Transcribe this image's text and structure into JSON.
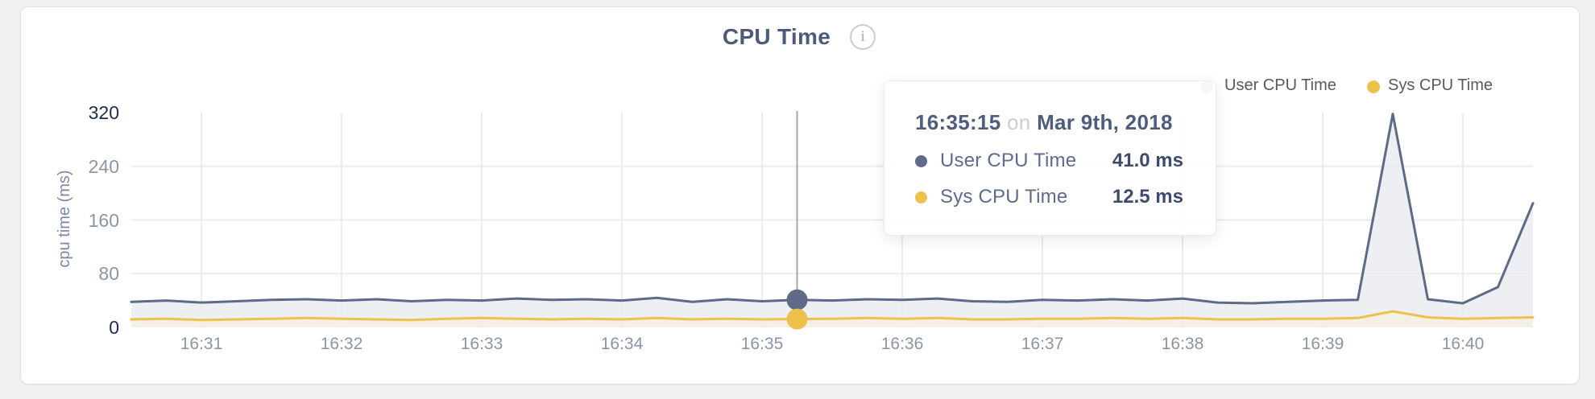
{
  "page": {
    "background": "#f1f1f2",
    "card_background": "#ffffff",
    "card_border": "#e2e2e2"
  },
  "header": {
    "title": "CPU Time",
    "info_icon": "i"
  },
  "tooltip": {
    "time": "16:35:15",
    "conjunction": "on",
    "date": "Mar 9th, 2018",
    "rows": [
      {
        "label": "User CPU Time",
        "value": "41.0 ms"
      },
      {
        "label": "Sys CPU Time",
        "value": "12.5 ms"
      }
    ]
  },
  "chart_data": {
    "type": "area",
    "title": "CPU Time",
    "xlabel": "",
    "ylabel": "cpu time (ms)",
    "unit": "ms",
    "ylim": [
      0,
      320
    ],
    "y_ticks": [
      0,
      80,
      160,
      240,
      320
    ],
    "y_ticks_emphasized": [
      0,
      320
    ],
    "x_ticks": [
      "16:31",
      "16:32",
      "16:33",
      "16:34",
      "16:35",
      "16:36",
      "16:37",
      "16:38",
      "16:39",
      "16:40"
    ],
    "x_start": "16:30:30",
    "x_end": "16:40:30",
    "interval_seconds": 15,
    "grid": {
      "h_lines_at": [
        80,
        160,
        240
      ],
      "v_lines_at_ticks": true,
      "color": "#ececec"
    },
    "legend_position": "top-right",
    "times": [
      "16:30:30",
      "16:30:45",
      "16:31:00",
      "16:31:15",
      "16:31:30",
      "16:31:45",
      "16:32:00",
      "16:32:15",
      "16:32:30",
      "16:32:45",
      "16:33:00",
      "16:33:15",
      "16:33:30",
      "16:33:45",
      "16:34:00",
      "16:34:15",
      "16:34:30",
      "16:34:45",
      "16:35:00",
      "16:35:15",
      "16:35:30",
      "16:35:45",
      "16:36:00",
      "16:36:15",
      "16:36:30",
      "16:36:45",
      "16:37:00",
      "16:37:15",
      "16:37:30",
      "16:37:45",
      "16:38:00",
      "16:38:15",
      "16:38:30",
      "16:38:45",
      "16:39:00",
      "16:39:15",
      "16:39:30",
      "16:39:45",
      "16:40:00",
      "16:40:15",
      "16:40:30"
    ],
    "series": [
      {
        "name": "User CPU Time",
        "color": "#5e6a87",
        "fill": "#edeff3",
        "values": [
          38,
          40,
          37,
          39,
          41,
          42,
          40,
          42,
          39,
          41,
          40,
          43,
          41,
          42,
          40,
          44,
          38,
          42,
          39,
          41,
          40,
          42,
          41,
          43,
          39,
          38,
          41,
          40,
          42,
          40,
          43,
          37,
          36,
          38,
          40,
          41,
          318,
          42,
          36,
          60,
          185
        ]
      },
      {
        "name": "Sys CPU Time",
        "color": "#eec14d",
        "fill": "#f4f0e3",
        "values": [
          12,
          13,
          11,
          12,
          13,
          14,
          13,
          12,
          11,
          13,
          14,
          13,
          12,
          13,
          12,
          14,
          12,
          13,
          12,
          12.5,
          13,
          14,
          13,
          14,
          12,
          12,
          13,
          13,
          14,
          13,
          14,
          12,
          12,
          13,
          13,
          14,
          24,
          15,
          13,
          14,
          15
        ]
      }
    ],
    "hover": {
      "time": "16:35:15",
      "values": [
        41.0,
        12.5
      ],
      "line_color": "#a6a6a6"
    }
  }
}
